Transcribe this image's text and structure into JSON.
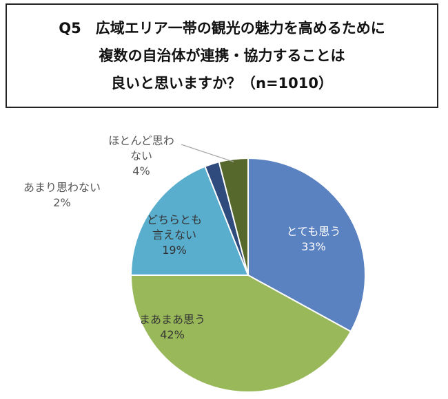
{
  "question": {
    "lines": [
      "Q5　広域エリア一帯の観光の魅力を高めるために",
      "複数の自治体が連携・協力することは",
      "良いと思いますか？（n=1010）"
    ]
  },
  "chart_data": {
    "type": "pie",
    "title": "Q5　広域エリア一帯の観光の魅力を高めるために複数の自治体が連携・協力することは良いと思いますか？（n=1010）",
    "start": "12 o'clock",
    "direction": "clockwise",
    "slices": [
      {
        "label": "とても思う",
        "value": 33,
        "value_label": "33%",
        "color": "#5a81c0",
        "label_lines": [
          "とても思う"
        ],
        "text_color": "#ffffff",
        "label_position": "inside"
      },
      {
        "label": "まあまあ思う",
        "value": 42,
        "value_label": "42%",
        "color": "#98b859",
        "label_lines": [
          "まあまあ思う"
        ],
        "text_color": "#333333",
        "label_position": "inside"
      },
      {
        "label": "どちらとも言えない",
        "value": 19,
        "value_label": "19%",
        "color": "#5aaecd",
        "label_lines": [
          "どちらとも",
          "言えない"
        ],
        "text_color": "#333333",
        "label_position": "inside"
      },
      {
        "label": "あまり思わない",
        "value": 2,
        "value_label": "2%",
        "color": "#2f4a7d",
        "label_lines": [
          "あまり思わない"
        ],
        "text_color": "#555555",
        "label_position": "outside"
      },
      {
        "label": "ほとんど思わない",
        "value": 4,
        "value_label": "4%",
        "color": "#56682b",
        "label_lines": [
          "ほとんど思わ",
          "ない"
        ],
        "text_color": "#555555",
        "label_position": "outside"
      }
    ]
  }
}
